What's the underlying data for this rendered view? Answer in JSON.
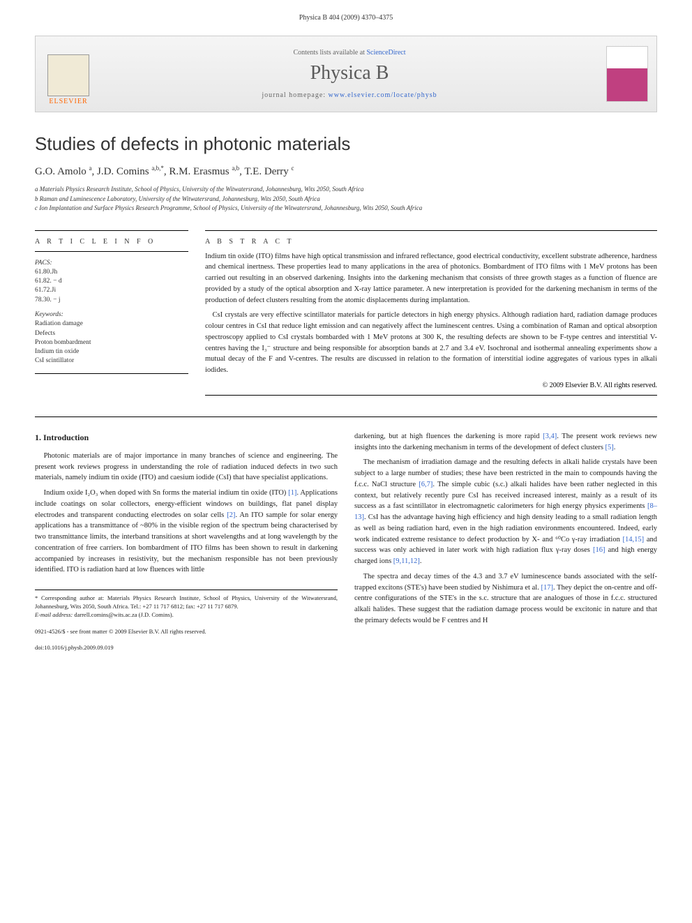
{
  "header": {
    "citation": "Physica B 404 (2009) 4370–4375"
  },
  "banner": {
    "contents_prefix": "Contents lists available at ",
    "contents_link": "ScienceDirect",
    "journal_title": "Physica B",
    "homepage_prefix": "journal homepage: ",
    "homepage_link": "www.elsevier.com/locate/physb",
    "publisher": "ELSEVIER"
  },
  "article": {
    "title": "Studies of defects in photonic materials",
    "authors_html": "G.O. Amolo <sup>a</sup>, J.D. Comins <sup>a,b,*</sup>, R.M. Erasmus <sup>a,b</sup>, T.E. Derry <sup>c</sup>",
    "affiliations": [
      "a Materials Physics Research Institute, School of Physics, University of the Witwatersrand, Johannesburg, Wits 2050, South Africa",
      "b Raman and Luminescence Laboratory, University of the Witwatersrand, Johannesburg, Wits 2050, South Africa",
      "c Ion Implantation and Surface Physics Research Programme, School of Physics, University of the Witwatersrand, Johannesburg, Wits 2050, South Africa"
    ]
  },
  "info": {
    "label": "A R T I C L E  I N F O",
    "pacs_label": "PACS:",
    "pacs": [
      "61.80.Jh",
      "61.82. − d",
      "61.72.Ji",
      "78.30. − j"
    ],
    "keywords_label": "Keywords:",
    "keywords": [
      "Radiation damage",
      "Defects",
      "Proton bombardment",
      "Indium tin oxide",
      "CsI scintillator"
    ]
  },
  "abstract": {
    "label": "A B S T R A C T",
    "paragraphs": [
      "Indium tin oxide (ITO) films have high optical transmission and infrared reflectance, good electrical conductivity, excellent substrate adherence, hardness and chemical inertness. These properties lead to many applications in the area of photonics. Bombardment of ITO films with 1 MeV protons has been carried out resulting in an observed darkening. Insights into the darkening mechanism that consists of three growth stages as a function of fluence are provided by a study of the optical absorption and X-ray lattice parameter. A new interpretation is provided for the darkening mechanism in terms of the production of defect clusters resulting from the atomic displacements during implantation.",
      "CsI crystals are very effective scintillator materials for particle detectors in high energy physics. Although radiation hard, radiation damage produces colour centres in CsI that reduce light emission and can negatively affect the luminescent centres. Using a combination of Raman and optical absorption spectroscopy applied to CsI crystals bombarded with 1 MeV protons at 300 K, the resulting defects are shown to be F-type centres and interstitial V-centres having the I₃⁻ structure and being responsible for absorption bands at 2.7 and 3.4 eV. Isochronal and isothermal annealing experiments show a mutual decay of the F and V-centres. The results are discussed in relation to the formation of interstitial iodine aggregates of various types in alkali iodides."
    ],
    "copyright": "© 2009 Elsevier B.V. All rights reserved."
  },
  "body": {
    "section_title": "1. Introduction",
    "col1": [
      "Photonic materials are of major importance in many branches of science and engineering. The present work reviews progress in understanding the role of radiation induced defects in two such materials, namely indium tin oxide (ITO) and caesium iodide (CsI) that have specialist applications.",
      "Indium oxide I₂O₃ when doped with Sn forms the material indium tin oxide (ITO) [1]. Applications include coatings on solar collectors, energy-efficient windows on buildings, flat panel display electrodes and transparent conducting electrodes on solar cells [2]. An ITO sample for solar energy applications has a transmittance of ~80% in the visible region of the spectrum being characterised by two transmittance limits, the interband transitions at short wavelengths and at long wavelength by the concentration of free carriers. Ion bombardment of ITO films has been shown to result in darkening accompanied by increases in resistivity, but the mechanism responsible has not been previously identified. ITO is radiation hard at low fluences with little"
    ],
    "col2": [
      "darkening, but at high fluences the darkening is more rapid [3,4]. The present work reviews new insights into the darkening mechanism in terms of the development of defect clusters [5].",
      "The mechanism of irradiation damage and the resulting defects in alkali halide crystals have been subject to a large number of studies; these have been restricted in the main to compounds having the f.c.c. NaCl structure [6,7]. The simple cubic (s.c.) alkali halides have been rather neglected in this context, but relatively recently pure CsI has received increased interest, mainly as a result of its success as a fast scintillator in electromagnetic calorimeters for high energy physics experiments [8–13]. CsI has the advantage having high efficiency and high density leading to a small radiation length as well as being radiation hard, even in the high radiation environments encountered. Indeed, early work indicated extreme resistance to defect production by X- and ⁶⁰Co γ-ray irradiation [14,15] and success was only achieved in later work with high radiation flux γ-ray doses [16] and high energy charged ions [9,11,12].",
      "The spectra and decay times of the 4.3 and 3.7 eV luminescence bands associated with the self-trapped excitons (STE's) have been studied by Nishimura et al. [17]. They depict the on-centre and off-centre configurations of the STE's in the s.c. structure that are analogues of those in f.c.c. structured alkali halides. These suggest that the radiation damage process would be excitonic in nature and that the primary defects would be F centres and H"
    ]
  },
  "footnote": {
    "corresponding": "* Corresponding author at: Materials Physics Research Institute, School of Physics, University of the Witwatersrand, Johannesburg, Wits 2050, South Africa. Tel.: +27 11 717 6812; fax: +27 11 717 6879.",
    "email_label": "E-mail address:",
    "email": "darrell.comins@wits.ac.za (J.D. Comins)."
  },
  "footer": {
    "issn": "0921-4526/$ - see front matter © 2009 Elsevier B.V. All rights reserved.",
    "doi": "doi:10.1016/j.physb.2009.09.019"
  },
  "colors": {
    "link": "#3366cc",
    "elsevier_orange": "#ff6600",
    "text": "#222222",
    "border": "#cccccc"
  }
}
